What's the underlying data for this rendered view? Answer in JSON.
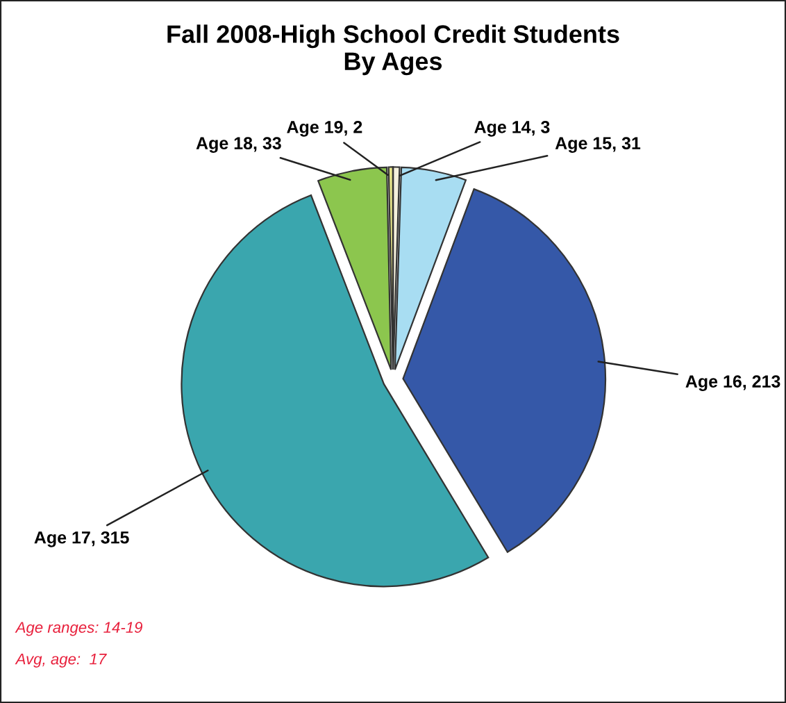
{
  "chart_data": {
    "type": "pie",
    "title": "Fall 2008-High School Credit Students\nBy Ages",
    "categories": [
      "Age 14, 3",
      "Age 15, 31",
      "Age 16, 213",
      "Age 17, 315",
      "Age 18, 33",
      "Age 19, 2"
    ],
    "values": [
      3,
      31,
      213,
      315,
      33,
      2
    ],
    "colors": [
      "#f4f0dc",
      "#a8ddf2",
      "#3558a8",
      "#3aa6ae",
      "#8cc64e",
      "#e6e48a"
    ],
    "annotations": [
      "Age ranges: 14-19",
      "Avg, age:  17"
    ]
  }
}
